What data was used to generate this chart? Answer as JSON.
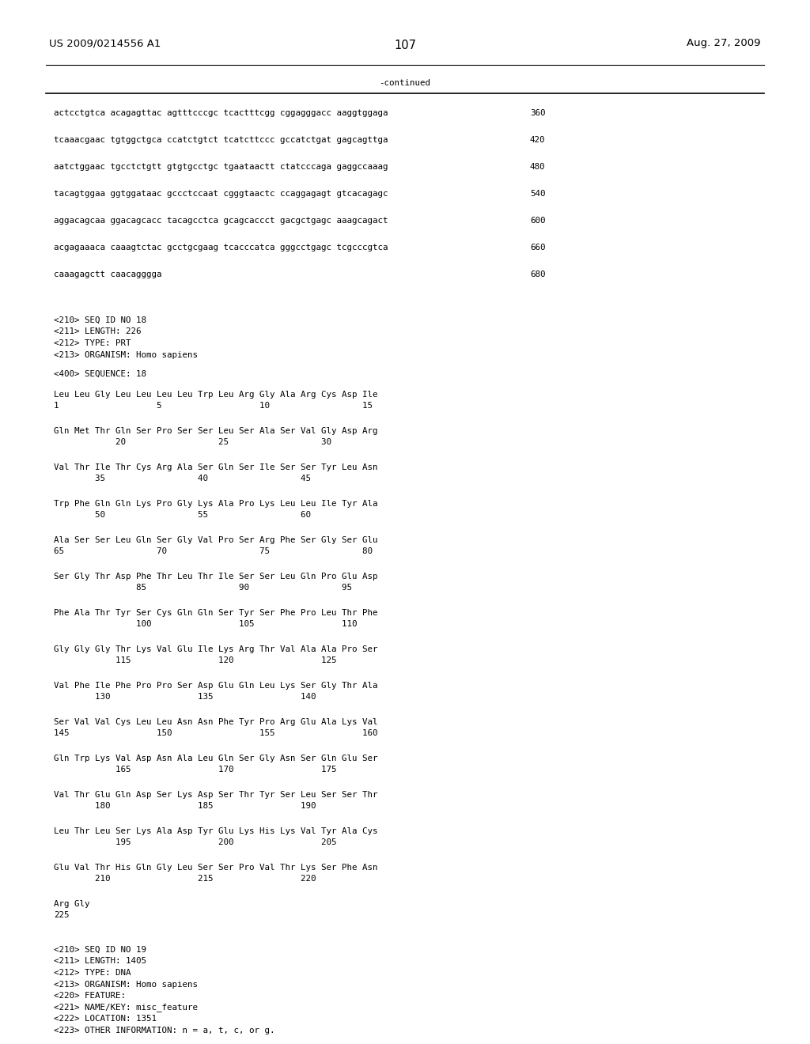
{
  "header_left": "US 2009/0214556 A1",
  "header_right": "Aug. 27, 2009",
  "page_number": "107",
  "continued_label": "-continued",
  "background_color": "#ffffff",
  "text_color": "#000000",
  "font_size_header": 9.5,
  "font_size_body": 7.8,
  "font_size_page": 10.5,
  "dna_lines": [
    [
      "actcctgtca acagagttac agtttcccgc tcactttcgg cggagggacc aaggtggaga",
      "360"
    ],
    [
      "tcaaacgaac tgtggctgca ccatctgtct tcatcttccc gccatctgat gagcagttga",
      "420"
    ],
    [
      "aatctggaac tgcctctgtt gtgtgcctgc tgaataactt ctatcccaga gaggccaaag",
      "480"
    ],
    [
      "tacagtggaa ggtggataac gccctccaat cgggtaactc ccaggagagt gtcacagagc",
      "540"
    ],
    [
      "aggacagcaa ggacagcacc tacagcctca gcagcaccct gacgctgagc aaagcagact",
      "600"
    ],
    [
      "acgagaaaca caaagtctac gcctgcgaag tcacccatca gggcctgagc tcgcccgtca",
      "660"
    ],
    [
      "caaagagctt caacagggga",
      "680"
    ]
  ],
  "metadata_lines": [
    "<210> SEQ ID NO 18",
    "<211> LENGTH: 226",
    "<212> TYPE: PRT",
    "<213> ORGANISM: Homo sapiens"
  ],
  "sequence_label": "<400> SEQUENCE: 18",
  "protein_blocks": [
    {
      "seq": "Leu Leu Gly Leu Leu Leu Leu Trp Leu Arg Gly Ala Arg Cys Asp Ile",
      "numline": "1                   5                   10                  15"
    },
    {
      "seq": "Gln Met Thr Gln Ser Pro Ser Ser Leu Ser Ala Ser Val Gly Asp Arg",
      "numline": "            20                  25                  30"
    },
    {
      "seq": "Val Thr Ile Thr Cys Arg Ala Ser Gln Ser Ile Ser Ser Tyr Leu Asn",
      "numline": "        35                  40                  45"
    },
    {
      "seq": "Trp Phe Gln Gln Lys Pro Gly Lys Ala Pro Lys Leu Leu Ile Tyr Ala",
      "numline": "        50                  55                  60"
    },
    {
      "seq": "Ala Ser Ser Leu Gln Ser Gly Val Pro Ser Arg Phe Ser Gly Ser Glu",
      "numline": "65                  70                  75                  80"
    },
    {
      "seq": "Ser Gly Thr Asp Phe Thr Leu Thr Ile Ser Ser Leu Gln Pro Glu Asp",
      "numline": "                85                  90                  95"
    },
    {
      "seq": "Phe Ala Thr Tyr Ser Cys Gln Gln Ser Tyr Ser Phe Pro Leu Thr Phe",
      "numline": "                100                 105                 110"
    },
    {
      "seq": "Gly Gly Gly Thr Lys Val Glu Ile Lys Arg Thr Val Ala Ala Pro Ser",
      "numline": "            115                 120                 125"
    },
    {
      "seq": "Val Phe Ile Phe Pro Pro Ser Asp Glu Gln Leu Lys Ser Gly Thr Ala",
      "numline": "        130                 135                 140"
    },
    {
      "seq": "Ser Val Val Cys Leu Leu Asn Asn Phe Tyr Pro Arg Glu Ala Lys Val",
      "numline": "145                 150                 155                 160"
    },
    {
      "seq": "Gln Trp Lys Val Asp Asn Ala Leu Gln Ser Gly Asn Ser Gln Glu Ser",
      "numline": "            165                 170                 175"
    },
    {
      "seq": "Val Thr Glu Gln Asp Ser Lys Asp Ser Thr Tyr Ser Leu Ser Ser Thr",
      "numline": "        180                 185                 190"
    },
    {
      "seq": "Leu Thr Leu Ser Lys Ala Asp Tyr Glu Lys His Lys Val Tyr Ala Cys",
      "numline": "            195                 200                 205"
    },
    {
      "seq": "Glu Val Thr His Gln Gly Leu Ser Ser Pro Val Thr Lys Ser Phe Asn",
      "numline": "        210                 215                 220"
    },
    {
      "seq": "Arg Gly",
      "numline": "225"
    }
  ],
  "metadata2_lines": [
    "<210> SEQ ID NO 19",
    "<211> LENGTH: 1405",
    "<212> TYPE: DNA",
    "<213> ORGANISM: Homo sapiens",
    "<220> FEATURE:",
    "<221> NAME/KEY: misc_feature",
    "<222> LOCATION: 1351",
    "<223> OTHER INFORMATION: n = a, t, c, or g."
  ]
}
